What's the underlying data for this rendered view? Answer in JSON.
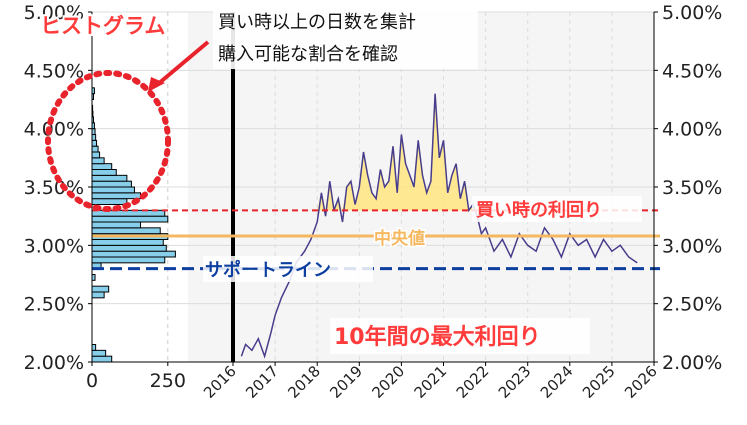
{
  "annotations": {
    "histogram_label": "ヒストグラム",
    "note_line1": "買い時以上の日数を集計",
    "note_line2": "購入可能な割合を確認",
    "buy_yield_label": "買い時の利回り",
    "median_label": "中央値",
    "support_label": "サポートライン",
    "max_yield_label": "10年間の最大利回り"
  },
  "colors": {
    "histogram_bar": "#87ceeb",
    "price_line": "#483d8b",
    "fill_above": "#ffe680",
    "buy_line": "#e8232b",
    "median_line": "#f5b860",
    "support_line": "#0d3fa0",
    "label_red": "#ff3b3b",
    "vertical_marker": "#000000",
    "plot_bg": "#f5f5f5"
  },
  "chart_data": [
    {
      "type": "bar",
      "orientation": "horizontal",
      "name": "histogram",
      "xlabel": "",
      "ylabel": "",
      "xlim": [
        0,
        310
      ],
      "ylim": [
        2.0,
        5.0
      ],
      "x_ticks": [
        "0",
        "250"
      ],
      "y_ticks": [
        "2.00%",
        "2.50%",
        "3.00%",
        "3.50%",
        "4.00%",
        "4.50%",
        "5.00%"
      ],
      "bin_width": 0.05,
      "bin_starts": [
        2.0,
        2.05,
        2.1,
        2.15,
        2.2,
        2.25,
        2.3,
        2.35,
        2.4,
        2.45,
        2.5,
        2.55,
        2.6,
        2.65,
        2.7,
        2.75,
        2.8,
        2.85,
        2.9,
        2.95,
        3.0,
        3.05,
        3.1,
        3.15,
        3.2,
        3.25,
        3.3,
        3.35,
        3.4,
        3.45,
        3.5,
        3.55,
        3.6,
        3.65,
        3.7,
        3.75,
        3.8,
        3.85,
        3.9,
        3.95,
        4.0,
        4.05,
        4.1,
        4.15,
        4.2,
        4.25,
        4.3,
        4.35,
        4.4,
        4.45
      ],
      "counts": [
        65,
        45,
        12,
        0,
        0,
        0,
        0,
        0,
        0,
        0,
        0,
        40,
        55,
        0,
        10,
        0,
        30,
        240,
        275,
        245,
        235,
        250,
        225,
        160,
        250,
        240,
        0,
        115,
        160,
        140,
        130,
        115,
        80,
        65,
        40,
        25,
        20,
        15,
        12,
        10,
        8,
        5,
        3,
        2,
        0,
        5,
        8,
        0,
        0,
        0
      ]
    },
    {
      "type": "line",
      "name": "yield",
      "xlabel": "",
      "ylabel": "",
      "xlim": [
        2016,
        2026
      ],
      "ylim": [
        2.0,
        5.0
      ],
      "x_ticks": [
        "2016",
        "2017",
        "2018",
        "2019",
        "2020",
        "2021",
        "2022",
        "2023",
        "2024",
        "2025",
        "2026"
      ],
      "y_ticks": [
        "2.00%",
        "2.50%",
        "3.00%",
        "3.50%",
        "4.00%",
        "4.50%",
        "5.00%"
      ],
      "x": [
        2016.2,
        2016.3,
        2016.45,
        2016.6,
        2016.75,
        2016.9,
        2017.0,
        2017.15,
        2017.35,
        2017.5,
        2017.7,
        2017.85,
        2018.0,
        2018.1,
        2018.2,
        2018.3,
        2018.4,
        2018.5,
        2018.6,
        2018.7,
        2018.8,
        2018.9,
        2019.0,
        2019.1,
        2019.2,
        2019.3,
        2019.4,
        2019.5,
        2019.6,
        2019.7,
        2019.8,
        2019.9,
        2020.0,
        2020.1,
        2020.2,
        2020.3,
        2020.4,
        2020.5,
        2020.6,
        2020.7,
        2020.8,
        2020.9,
        2021.0,
        2021.1,
        2021.2,
        2021.3,
        2021.4,
        2021.5,
        2021.6,
        2021.7,
        2021.8,
        2021.9,
        2022.0,
        2022.2,
        2022.4,
        2022.6,
        2022.8,
        2023.0,
        2023.2,
        2023.4,
        2023.6,
        2023.8,
        2024.0,
        2024.2,
        2024.4,
        2024.6,
        2024.8,
        2025.0,
        2025.2,
        2025.4,
        2025.6
      ],
      "y": [
        2.05,
        2.15,
        2.1,
        2.2,
        2.05,
        2.25,
        2.4,
        2.55,
        2.7,
        2.85,
        2.95,
        3.05,
        3.2,
        3.45,
        3.25,
        3.55,
        3.3,
        3.4,
        3.2,
        3.5,
        3.55,
        3.35,
        3.5,
        3.8,
        3.6,
        3.45,
        3.4,
        3.65,
        3.5,
        3.55,
        3.85,
        3.45,
        3.95,
        3.7,
        3.6,
        3.5,
        3.9,
        3.6,
        3.45,
        3.55,
        4.3,
        3.75,
        3.9,
        3.45,
        3.6,
        3.7,
        3.4,
        3.55,
        3.3,
        3.35,
        3.25,
        3.1,
        3.15,
        2.95,
        3.05,
        2.9,
        3.1,
        3.0,
        2.95,
        3.15,
        3.05,
        2.9,
        3.1,
        3.0,
        3.05,
        2.9,
        3.05,
        2.95,
        3.0,
        2.9,
        2.85
      ]
    }
  ],
  "reference_lines": {
    "buy_yield": 3.3,
    "median": 3.08,
    "support": 2.8,
    "marker_year": 2016.0
  }
}
